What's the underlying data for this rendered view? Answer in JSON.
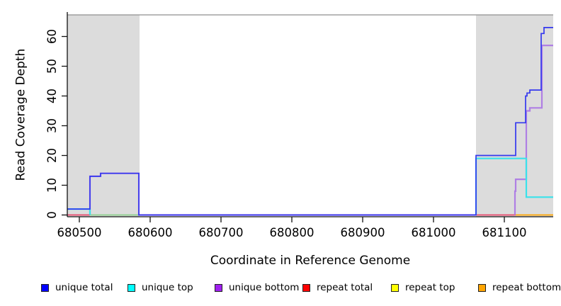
{
  "figure": {
    "background": "#ffffff",
    "repeat_region_fill": "#dcdcdc",
    "plot_top_line_color": "#8f8f8f",
    "axis_color": "#111111",
    "tick_label_color": "#000000"
  },
  "chart_data": {
    "type": "line",
    "step_interpolation": true,
    "title": "",
    "xlabel": "Coordinate in Reference Genome",
    "ylabel": "Read Coverage Depth",
    "xlim": [
      680483,
      681169
    ],
    "ylim": [
      0,
      68
    ],
    "x_ticks": [
      680500,
      680600,
      680700,
      680800,
      680900,
      681000,
      681100
    ],
    "y_ticks": [
      0,
      10,
      20,
      30,
      40,
      50,
      60
    ],
    "grid": false,
    "legend_position": "bottom",
    "repeat_regions": [
      [
        680483,
        680585
      ],
      [
        681060,
        681169
      ]
    ],
    "series": [
      {
        "name": "repeat total",
        "line_color": "#e8466b",
        "legend_color": "#ff0000",
        "segments": [
          [
            [
              680483,
              0
            ],
            [
              680515,
              0
            ]
          ],
          [
            [
              681060,
              0
            ],
            [
              681116,
              0
            ]
          ]
        ]
      },
      {
        "name": "unlabeled green baseline",
        "line_color": "#8ed08e",
        "segments": [
          [
            [
              680515,
              0
            ],
            [
              680584,
              0
            ]
          ]
        ]
      },
      {
        "name": "repeat bottom",
        "line_color": "#ffa500",
        "legend_color": "#ffa500",
        "segments": [
          [
            [
              681116,
              0
            ],
            [
              681169,
              0
            ]
          ]
        ]
      },
      {
        "name": "repeat top",
        "line_color": "#ffff00",
        "legend_color": "#ffff00",
        "segments": []
      },
      {
        "name": "unique bottom",
        "line_color": "#af7fe4",
        "legend_color": "#a020f0",
        "segments": [
          [
            [
              680515,
              0
            ],
            [
              680515,
              13
            ],
            [
              680530,
              13
            ],
            [
              680530,
              14
            ],
            [
              680584,
              14
            ],
            [
              680584,
              0
            ],
            [
              681060,
              0
            ]
          ],
          [
            [
              681115,
              0
            ],
            [
              681115,
              8
            ],
            [
              681116,
              8
            ],
            [
              681116,
              12
            ],
            [
              681131,
              12
            ],
            [
              681131,
              35
            ],
            [
              681136,
              35
            ],
            [
              681136,
              36
            ],
            [
              681153,
              36
            ],
            [
              681153,
              57
            ],
            [
              681169,
              57
            ]
          ]
        ]
      },
      {
        "name": "unique top",
        "line_color": "#3ae2ea",
        "legend_color": "#00ffff",
        "segments": [
          [
            [
              680483,
              2
            ],
            [
              680515,
              2
            ],
            [
              680515,
              0
            ]
          ],
          [
            [
              681060,
              0
            ],
            [
              681060,
              19
            ],
            [
              681131,
              19
            ],
            [
              681131,
              6
            ],
            [
              681169,
              6
            ]
          ]
        ]
      },
      {
        "name": "unique total",
        "line_color": "#3438ee",
        "legend_color": "#0000ff",
        "segments": [
          [
            [
              680483,
              2
            ],
            [
              680515,
              2
            ],
            [
              680515,
              13
            ],
            [
              680530,
              13
            ],
            [
              680530,
              14
            ],
            [
              680584,
              14
            ],
            [
              680584,
              0
            ],
            [
              681060,
              0
            ],
            [
              681060,
              20
            ],
            [
              681116,
              20
            ],
            [
              681116,
              31
            ],
            [
              681130,
              31
            ],
            [
              681130,
              40
            ],
            [
              681132,
              40
            ],
            [
              681132,
              41
            ],
            [
              681136,
              41
            ],
            [
              681136,
              42
            ],
            [
              681152,
              42
            ],
            [
              681152,
              61
            ],
            [
              681156,
              61
            ],
            [
              681156,
              63
            ],
            [
              681169,
              63
            ]
          ]
        ]
      }
    ]
  },
  "legend": {
    "items": [
      {
        "label": "unique total",
        "color": "#0000ff"
      },
      {
        "label": "unique top",
        "color": "#00ffff"
      },
      {
        "label": "unique bottom",
        "color": "#a020f0"
      },
      {
        "label": "repeat total",
        "color": "#ff0000"
      },
      {
        "label": "repeat top",
        "color": "#ffff00"
      },
      {
        "label": "repeat bottom",
        "color": "#ffa500"
      }
    ]
  }
}
